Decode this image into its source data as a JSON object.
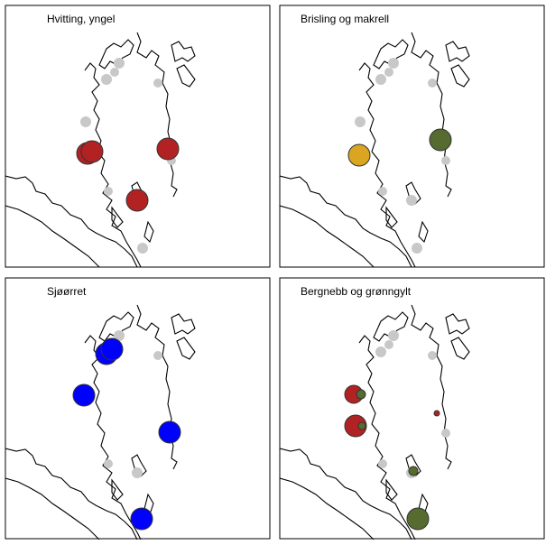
{
  "panels": [
    {
      "title": "Hvitting, yngel"
    },
    {
      "title": "Brisling og makrell"
    },
    {
      "title": "Sjøørret"
    },
    {
      "title": "Bergnebb og grønngylt"
    }
  ]
}
